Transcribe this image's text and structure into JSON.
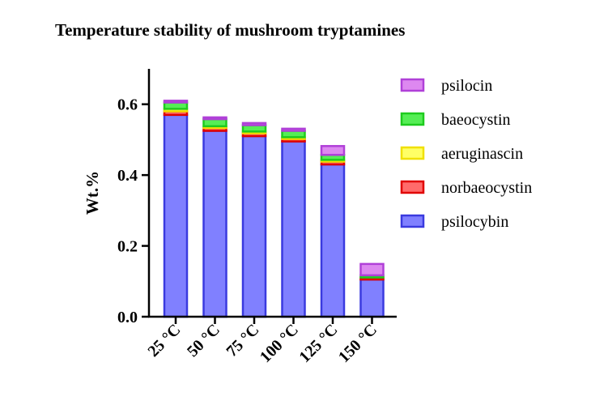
{
  "chart_data": {
    "type": "bar",
    "stacked": true,
    "title": "Temperature stability of mushroom tryptamines",
    "xlabel": "",
    "ylabel": "Wt.%",
    "ylim": [
      0,
      0.7
    ],
    "yticks": [
      0.0,
      0.2,
      0.4,
      0.6
    ],
    "ytick_labels": [
      "0.0",
      "0.2",
      "0.4",
      "0.6"
    ],
    "grid": false,
    "legend_position": "right",
    "categories": [
      "25 °C",
      "50 °C",
      "75 °C",
      "100 °C",
      "125 °C",
      "150 °C"
    ],
    "series": [
      {
        "name": "psilocybin",
        "values": [
          0.57,
          0.525,
          0.51,
          0.495,
          0.43,
          0.105
        ],
        "fill": "#8080ff",
        "stroke": "#3a3adf"
      },
      {
        "name": "norbaeocystin",
        "values": [
          0.01,
          0.008,
          0.008,
          0.007,
          0.008,
          0.006
        ],
        "fill": "#ff6b6b",
        "stroke": "#e00000"
      },
      {
        "name": "aeruginascin",
        "values": [
          0.007,
          0.005,
          0.005,
          0.005,
          0.005,
          0.0
        ],
        "fill": "#ffff66",
        "stroke": "#f0e000"
      },
      {
        "name": "baeocystin",
        "values": [
          0.018,
          0.02,
          0.018,
          0.018,
          0.014,
          0.006
        ],
        "fill": "#55ee55",
        "stroke": "#1ecb1e"
      },
      {
        "name": "psilocin",
        "values": [
          0.005,
          0.005,
          0.006,
          0.006,
          0.025,
          0.032
        ],
        "fill": "#dd88f0",
        "stroke": "#b040d8"
      }
    ],
    "legend_order": [
      "psilocin",
      "baeocystin",
      "aeruginascin",
      "norbaeocystin",
      "psilocybin"
    ]
  }
}
